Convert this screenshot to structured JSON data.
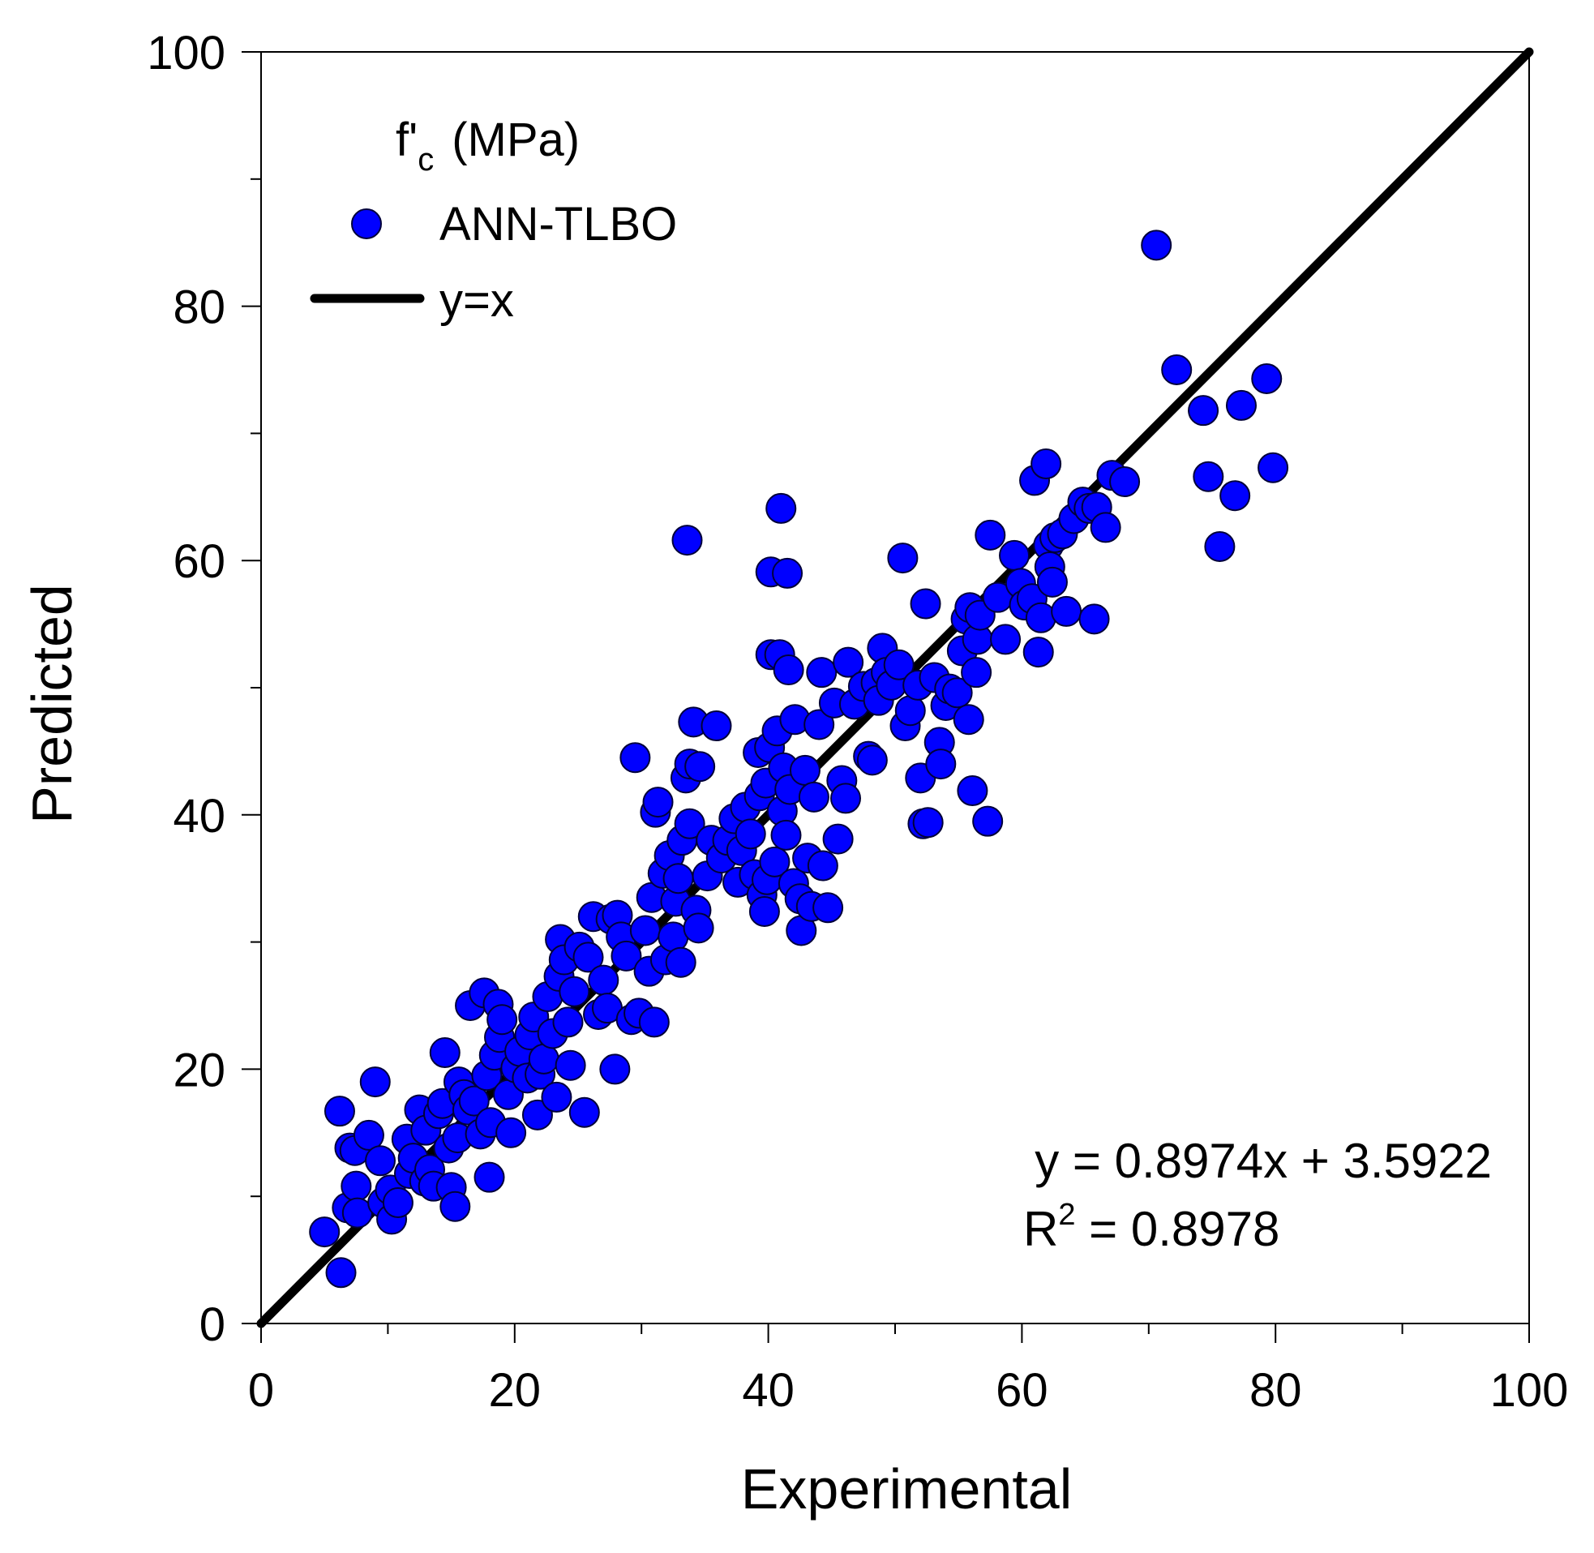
{
  "chart_data": {
    "type": "scatter",
    "title": "",
    "xlabel": "Experimental",
    "ylabel": "Predicted",
    "xlim": [
      0,
      100
    ],
    "ylim": [
      0,
      100
    ],
    "major_ticks": [
      0,
      20,
      40,
      60,
      80,
      100
    ],
    "minor_ticks": [
      10,
      30,
      50,
      70,
      90
    ],
    "tick_labels": [
      "0",
      "20",
      "40",
      "60",
      "80",
      "100"
    ],
    "grid": false,
    "legend": {
      "position": "top-left",
      "title_main": "f'",
      "title_sub": "c",
      "title_unit": "(MPa)",
      "entries": [
        {
          "label": "ANN-TLBO",
          "type": "marker"
        },
        {
          "label": "y=x",
          "type": "line"
        }
      ]
    },
    "annotation": {
      "equation": "y = 0.8974x + 3.5922",
      "r2_prefix": "R",
      "r2_sup": "2",
      "r2_value": " = 0.8978"
    },
    "reference_line": {
      "name": "y=x",
      "x": [
        0,
        100
      ],
      "y": [
        0,
        100
      ],
      "color": "#000000"
    },
    "series": [
      {
        "name": "ANN-TLBO",
        "color": "#0000ff",
        "points": [
          [
            5,
            7.2
          ],
          [
            6.3,
            4
          ],
          [
            6.2,
            16.7
          ],
          [
            6.8,
            9.1
          ],
          [
            7,
            13.8
          ],
          [
            7.4,
            13.6
          ],
          [
            7.5,
            10.8
          ],
          [
            7.6,
            8.7
          ],
          [
            8.5,
            14.8
          ],
          [
            9,
            19
          ],
          [
            9.4,
            12.8
          ],
          [
            9.6,
            9.5
          ],
          [
            10.2,
            10.5
          ],
          [
            10.3,
            8.2
          ],
          [
            10.8,
            9.5
          ],
          [
            11.5,
            14.5
          ],
          [
            11.7,
            11.8
          ],
          [
            12,
            13
          ],
          [
            12.5,
            16.8
          ],
          [
            12.9,
            11.2
          ],
          [
            13,
            15.2
          ],
          [
            13.3,
            12.1
          ],
          [
            13.6,
            10.8
          ],
          [
            14,
            16.5
          ],
          [
            14.3,
            17.3
          ],
          [
            14.5,
            21.3
          ],
          [
            14.8,
            13.8
          ],
          [
            15,
            10.7
          ],
          [
            15.3,
            9.2
          ],
          [
            15.5,
            14.6
          ],
          [
            15.6,
            19
          ],
          [
            16,
            18
          ],
          [
            16.3,
            16.8
          ],
          [
            16.8,
            17.5
          ],
          [
            16.5,
            25
          ],
          [
            17.3,
            14.9
          ],
          [
            17.6,
            26
          ],
          [
            17.8,
            19.5
          ],
          [
            18,
            11.5
          ],
          [
            18.1,
            15.8
          ],
          [
            18.4,
            21.1
          ],
          [
            18.7,
            25.1
          ],
          [
            18.8,
            22.5
          ],
          [
            19,
            23.9
          ],
          [
            19.5,
            18
          ],
          [
            19.7,
            15
          ],
          [
            20.1,
            20.1
          ],
          [
            20.4,
            21.4
          ],
          [
            21,
            19.3
          ],
          [
            21.2,
            22.7
          ],
          [
            21.5,
            24.1
          ],
          [
            21.8,
            16.4
          ],
          [
            22,
            19.6
          ],
          [
            22.3,
            20.8
          ],
          [
            22.6,
            25.7
          ],
          [
            23,
            22.8
          ],
          [
            23.3,
            17.8
          ],
          [
            23.5,
            27.3
          ],
          [
            23.6,
            30.2
          ],
          [
            23.9,
            28.6
          ],
          [
            24.2,
            23.7
          ],
          [
            24.4,
            20.3
          ],
          [
            24.7,
            26.1
          ],
          [
            25.1,
            29.6
          ],
          [
            25.5,
            16.6
          ],
          [
            25.8,
            28.8
          ],
          [
            26.2,
            32
          ],
          [
            26.6,
            24.3
          ],
          [
            27,
            27
          ],
          [
            27.3,
            24.8
          ],
          [
            27.6,
            31.8
          ],
          [
            27.9,
            20
          ],
          [
            28.1,
            32.1
          ],
          [
            28.4,
            30.4
          ],
          [
            28.8,
            28.9
          ],
          [
            29.2,
            23.9
          ],
          [
            29.5,
            44.5
          ],
          [
            29.8,
            24.4
          ],
          [
            30.3,
            30.9
          ],
          [
            30.6,
            27.7
          ],
          [
            31,
            23.7
          ],
          [
            30.8,
            33.5
          ],
          [
            31.1,
            40.2
          ],
          [
            31.3,
            41
          ],
          [
            31.7,
            35.4
          ],
          [
            31.9,
            28.6
          ],
          [
            32.2,
            36.8
          ],
          [
            32.5,
            30.4
          ],
          [
            32.7,
            33.2
          ],
          [
            32.9,
            35
          ],
          [
            33.1,
            28.4
          ],
          [
            33.2,
            38
          ],
          [
            33.6,
            61.6
          ],
          [
            33.8,
            39.3
          ],
          [
            33.5,
            42.9
          ],
          [
            33.8,
            44
          ],
          [
            34.1,
            47.3
          ],
          [
            34.3,
            32.5
          ],
          [
            34.5,
            31.1
          ],
          [
            34.6,
            43.8
          ],
          [
            35.2,
            35.2
          ],
          [
            35.5,
            38
          ],
          [
            35.9,
            47
          ],
          [
            36.3,
            36.6
          ],
          [
            36.8,
            38
          ],
          [
            37.3,
            39.7
          ],
          [
            37.6,
            34.7
          ],
          [
            37.9,
            37.2
          ],
          [
            38.2,
            40.6
          ],
          [
            38.6,
            38.5
          ],
          [
            38.9,
            35.3
          ],
          [
            39.2,
            44.9
          ],
          [
            39.3,
            41.5
          ],
          [
            39.5,
            33.7
          ],
          [
            39.7,
            32.4
          ],
          [
            39.8,
            42.5
          ],
          [
            39.9,
            34.9
          ],
          [
            40.1,
            45.3
          ],
          [
            40.2,
            59.1
          ],
          [
            40.2,
            52.6
          ],
          [
            40.5,
            36.3
          ],
          [
            40.7,
            46.6
          ],
          [
            40.9,
            52.6
          ],
          [
            41,
            64.1
          ],
          [
            41.1,
            40.3
          ],
          [
            41.2,
            43.7
          ],
          [
            41.4,
            38.4
          ],
          [
            41.6,
            51.4
          ],
          [
            41.5,
            59
          ],
          [
            41.7,
            42
          ],
          [
            42,
            34.6
          ],
          [
            42.1,
            47.5
          ],
          [
            42.5,
            33.4
          ],
          [
            42.6,
            30.9
          ],
          [
            42.9,
            43.5
          ],
          [
            43.1,
            36.6
          ],
          [
            43.4,
            32.8
          ],
          [
            43.6,
            41.4
          ],
          [
            44,
            47.1
          ],
          [
            44.2,
            51.2
          ],
          [
            44.3,
            36
          ],
          [
            44.7,
            32.7
          ],
          [
            45.2,
            48.8
          ],
          [
            45.5,
            38.1
          ],
          [
            45.8,
            42.7
          ],
          [
            46.1,
            41.3
          ],
          [
            46.3,
            52
          ],
          [
            46.8,
            48.7
          ],
          [
            47.5,
            50.1
          ],
          [
            47.9,
            44.6
          ],
          [
            48.2,
            44.3
          ],
          [
            48.5,
            50.4
          ],
          [
            48.7,
            49
          ],
          [
            49,
            53.1
          ],
          [
            49.3,
            51.2
          ],
          [
            49.7,
            50.2
          ],
          [
            50.3,
            51.8
          ],
          [
            50.6,
            60.2
          ],
          [
            50.8,
            47
          ],
          [
            51.2,
            48.2
          ],
          [
            51.8,
            50.2
          ],
          [
            52,
            42.9
          ],
          [
            52.2,
            39.3
          ],
          [
            52.4,
            56.6
          ],
          [
            52.6,
            39.4
          ],
          [
            53.1,
            50.8
          ],
          [
            53.5,
            45.7
          ],
          [
            53.6,
            44
          ],
          [
            54,
            48.6
          ],
          [
            54.3,
            49.9
          ],
          [
            54.9,
            49.6
          ],
          [
            55.3,
            52.9
          ],
          [
            55.6,
            55.4
          ],
          [
            55.9,
            56.3
          ],
          [
            55.8,
            47.5
          ],
          [
            56.1,
            41.9
          ],
          [
            56.4,
            51.2
          ],
          [
            56.5,
            53.8
          ],
          [
            56.7,
            55.7
          ],
          [
            57.3,
            39.5
          ],
          [
            57.5,
            62
          ],
          [
            58.1,
            57.1
          ],
          [
            58.7,
            53.8
          ],
          [
            59.4,
            60.4
          ],
          [
            59.9,
            58.2
          ],
          [
            60.2,
            56.5
          ],
          [
            60.8,
            57
          ],
          [
            61,
            66.3
          ],
          [
            61.3,
            52.8
          ],
          [
            61.5,
            55.5
          ],
          [
            61.9,
            67.6
          ],
          [
            62.1,
            61.2
          ],
          [
            62.2,
            59.5
          ],
          [
            62.4,
            58.3
          ],
          [
            62.6,
            61.8
          ],
          [
            63.2,
            62.1
          ],
          [
            63.5,
            56
          ],
          [
            64.1,
            63.3
          ],
          [
            64.8,
            64.6
          ],
          [
            65.3,
            64.1
          ],
          [
            65.9,
            64.2
          ],
          [
            65.7,
            55.4
          ],
          [
            66.6,
            62.6
          ],
          [
            67.1,
            66.7
          ],
          [
            68.1,
            66.2
          ],
          [
            70.6,
            84.8
          ],
          [
            72.2,
            75
          ],
          [
            74.3,
            71.8
          ],
          [
            74.7,
            66.6
          ],
          [
            75.6,
            61.1
          ],
          [
            76.8,
            65.1
          ],
          [
            77.3,
            72.2
          ],
          [
            79.3,
            74.3
          ],
          [
            79.8,
            67.3
          ]
        ]
      }
    ]
  }
}
